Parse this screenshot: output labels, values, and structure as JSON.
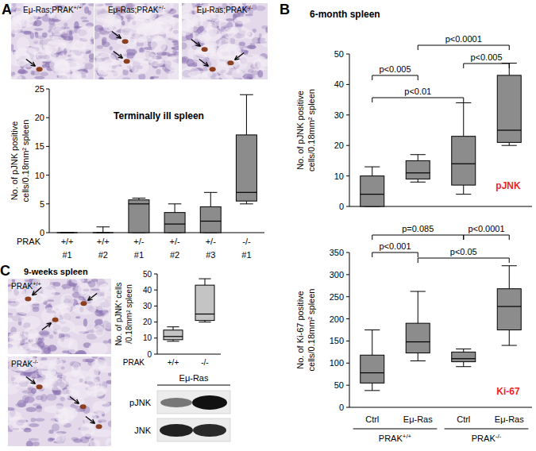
{
  "figure": {
    "panel_labels": [
      "A",
      "B",
      "C"
    ],
    "micrographs_a": [
      "Eμ-Ras;PRAK+/+",
      "Eμ-Ras;PRAK+/-",
      "Eμ-Ras;PRAK-/-"
    ],
    "micrographs_c": {
      "title": "9-weeks spleen",
      "labels": [
        "PRAK+/+",
        "PRAK-/-"
      ]
    },
    "blot": {
      "title": "Eμ-Ras",
      "rows": [
        "pJNK",
        "JNK"
      ]
    },
    "panel_b_title": "6-month spleen"
  },
  "chart_data": [
    {
      "type": "box",
      "title": "Terminally ill spleen",
      "ylabel": [
        "No. of pJNK positive",
        "cells/0.18mm² spleen"
      ],
      "x_label": "PRAK",
      "categories": [
        "+/+",
        "+/+",
        "+/-",
        "+/-",
        "+/-",
        "-/-"
      ],
      "subcategories": [
        "#1",
        "#2",
        "#1",
        "#2",
        "#3",
        "#1"
      ],
      "min": [
        0,
        0,
        0,
        0,
        0,
        5
      ],
      "q1": [
        0,
        0,
        0,
        0,
        0,
        5.5
      ],
      "median": [
        0,
        0,
        5,
        1.5,
        2,
        7
      ],
      "q3": [
        0,
        0,
        5.7,
        3.5,
        4.5,
        17
      ],
      "max": [
        0,
        1,
        6,
        5,
        7,
        24
      ],
      "ylim": [
        0,
        25
      ],
      "yticks": [
        0,
        5,
        10,
        15,
        20,
        25
      ],
      "color": "#8c8c8c"
    },
    {
      "type": "box",
      "annotation": "pJNK",
      "ylabel": [
        "No. of pJNK positive",
        "cells/0.18mm² spleen"
      ],
      "categories": [
        null,
        null,
        null,
        null
      ],
      "min": [
        0,
        8,
        4,
        20
      ],
      "q1": [
        0,
        9,
        7,
        21
      ],
      "median": [
        4,
        11,
        14,
        25
      ],
      "q3": [
        10,
        15,
        23,
        43
      ],
      "max": [
        13,
        17,
        34,
        47
      ],
      "comparisons": [
        {
          "text": "p<0.005",
          "from": 0,
          "to": 1
        },
        {
          "text": "p<0.01",
          "from": 0,
          "to": 2
        },
        {
          "text": "p<0.005",
          "from": 2,
          "to": 3
        },
        {
          "text": "p<0.0001",
          "from": 1,
          "to": 3
        }
      ],
      "ylim": [
        0,
        50
      ],
      "yticks": [
        0,
        10,
        20,
        30,
        40,
        50
      ],
      "color": "#8c8c8c"
    },
    {
      "type": "box",
      "annotation": "Ki-67",
      "ylabel": [
        "No. of Ki-67 positive",
        "cells/0.18mm² spleen"
      ],
      "categories": [
        "Ctrl",
        "Eμ-Ras",
        "Ctrl",
        "Eμ-Ras"
      ],
      "groups": [
        {
          "label": "PRAK+/+",
          "from": 0,
          "to": 1
        },
        {
          "label": "PRAK-/-",
          "from": 2,
          "to": 3
        }
      ],
      "min": [
        38,
        105,
        92,
        140
      ],
      "q1": [
        55,
        123,
        103,
        175
      ],
      "median": [
        78,
        148,
        110,
        228
      ],
      "q3": [
        118,
        190,
        125,
        268
      ],
      "max": [
        175,
        262,
        132,
        320
      ],
      "comparisons": [
        {
          "text": "p=0.085",
          "from": 0,
          "to": 2
        },
        {
          "text": "p<0.0001",
          "from": 2,
          "to": 3
        },
        {
          "text": "p<0.001",
          "from": 0,
          "to": 1
        },
        {
          "text": "p<0.05",
          "from": 1,
          "to": 3
        }
      ],
      "ylim": [
        0,
        350
      ],
      "yticks": [
        0,
        50,
        100,
        150,
        200,
        250,
        300,
        350
      ],
      "color": "#8c8c8c"
    },
    {
      "type": "box",
      "ylabel": [
        "No. of pJNK⁺ cells",
        "/0.18mm² spleen"
      ],
      "x_label": "PRAK",
      "categories": [
        "+/+",
        "-/-"
      ],
      "min": [
        8,
        20
      ],
      "q1": [
        9,
        21
      ],
      "median": [
        11,
        25
      ],
      "q3": [
        15,
        43
      ],
      "max": [
        17,
        47
      ],
      "ylim": [
        0,
        50
      ],
      "yticks": [
        0,
        10,
        20,
        30,
        40,
        50
      ],
      "color": "#c4c4c4"
    }
  ]
}
